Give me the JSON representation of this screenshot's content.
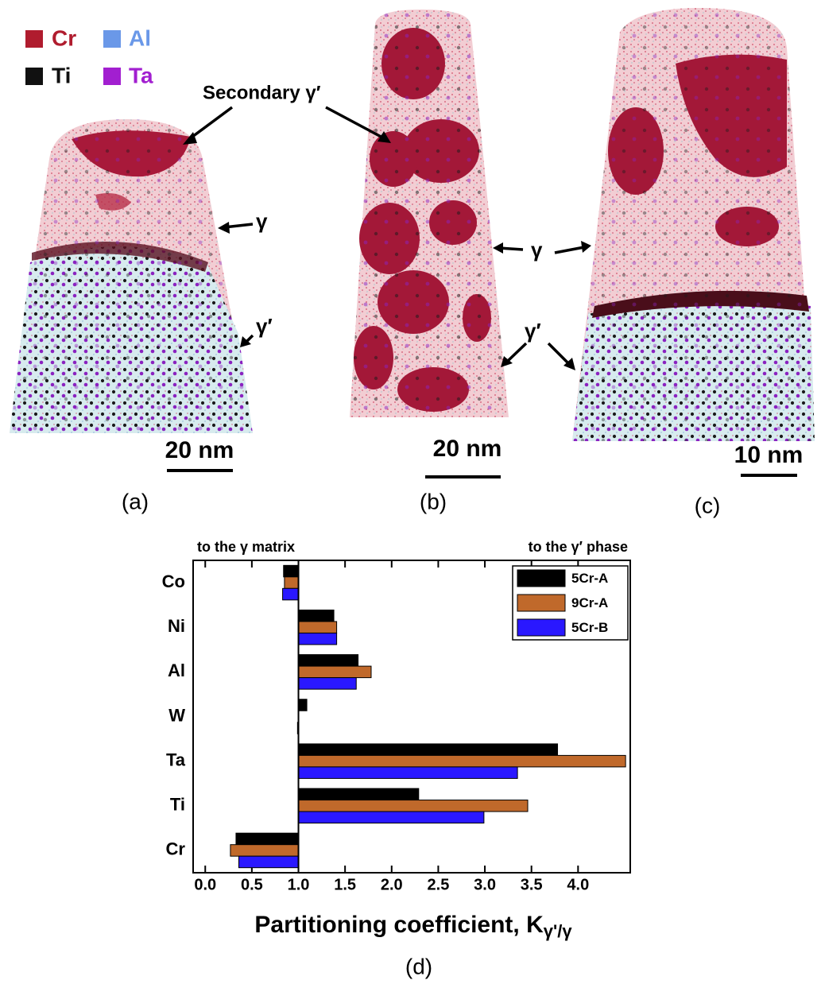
{
  "figure": {
    "legend": [
      {
        "label": "Cr",
        "color": "#b01c2e"
      },
      {
        "label": "Al",
        "color": "#6a98e8"
      },
      {
        "label": "Ti",
        "color": "#111111"
      },
      {
        "label": "Ta",
        "color": "#a21fd0"
      }
    ],
    "annotations": [
      "Secondary γ′",
      "γ",
      "γ′",
      "γ",
      "γ′"
    ],
    "scale_bars": [
      "20 nm",
      "20 nm",
      "10 nm"
    ],
    "panel_labels": [
      "(a)",
      "(b)",
      "(c)",
      "(d)"
    ]
  },
  "chart_data": {
    "type": "hbar",
    "annotation_left": "to the γ matrix",
    "annotation_right": "to the γ′ phase",
    "x_label": "Partitioning coefficient, K",
    "x_label_subscript": "γ'/γ",
    "categories": [
      "Co",
      "Ni",
      "Al",
      "W",
      "Ta",
      "Ti",
      "Cr"
    ],
    "baseline": 1,
    "series": [
      {
        "name": "5Cr-A",
        "color": "#000000",
        "values": [
          0.84,
          1.38,
          1.64,
          1.09,
          3.78,
          2.29,
          0.33
        ]
      },
      {
        "name": "9Cr-A",
        "color": "#c0692b",
        "values": [
          0.85,
          1.41,
          1.78,
          1.0,
          4.51,
          3.46,
          0.27
        ]
      },
      {
        "name": "5Cr-B",
        "color": "#2a18ff",
        "values": [
          0.83,
          1.41,
          1.62,
          0.99,
          3.35,
          2.99,
          0.36
        ]
      }
    ],
    "xlim": [
      -0.13,
      4.56
    ],
    "xticks": [
      {
        "value": 0,
        "label": "0.0"
      },
      0.5,
      {
        "value": 1,
        "label": "1.0"
      },
      1.5,
      {
        "value": 2,
        "label": "2.0"
      },
      2.5,
      {
        "value": 3,
        "label": "3.0"
      },
      3.5,
      {
        "value": 4,
        "label": "4.0"
      }
    ],
    "legend_position": "upper right"
  }
}
